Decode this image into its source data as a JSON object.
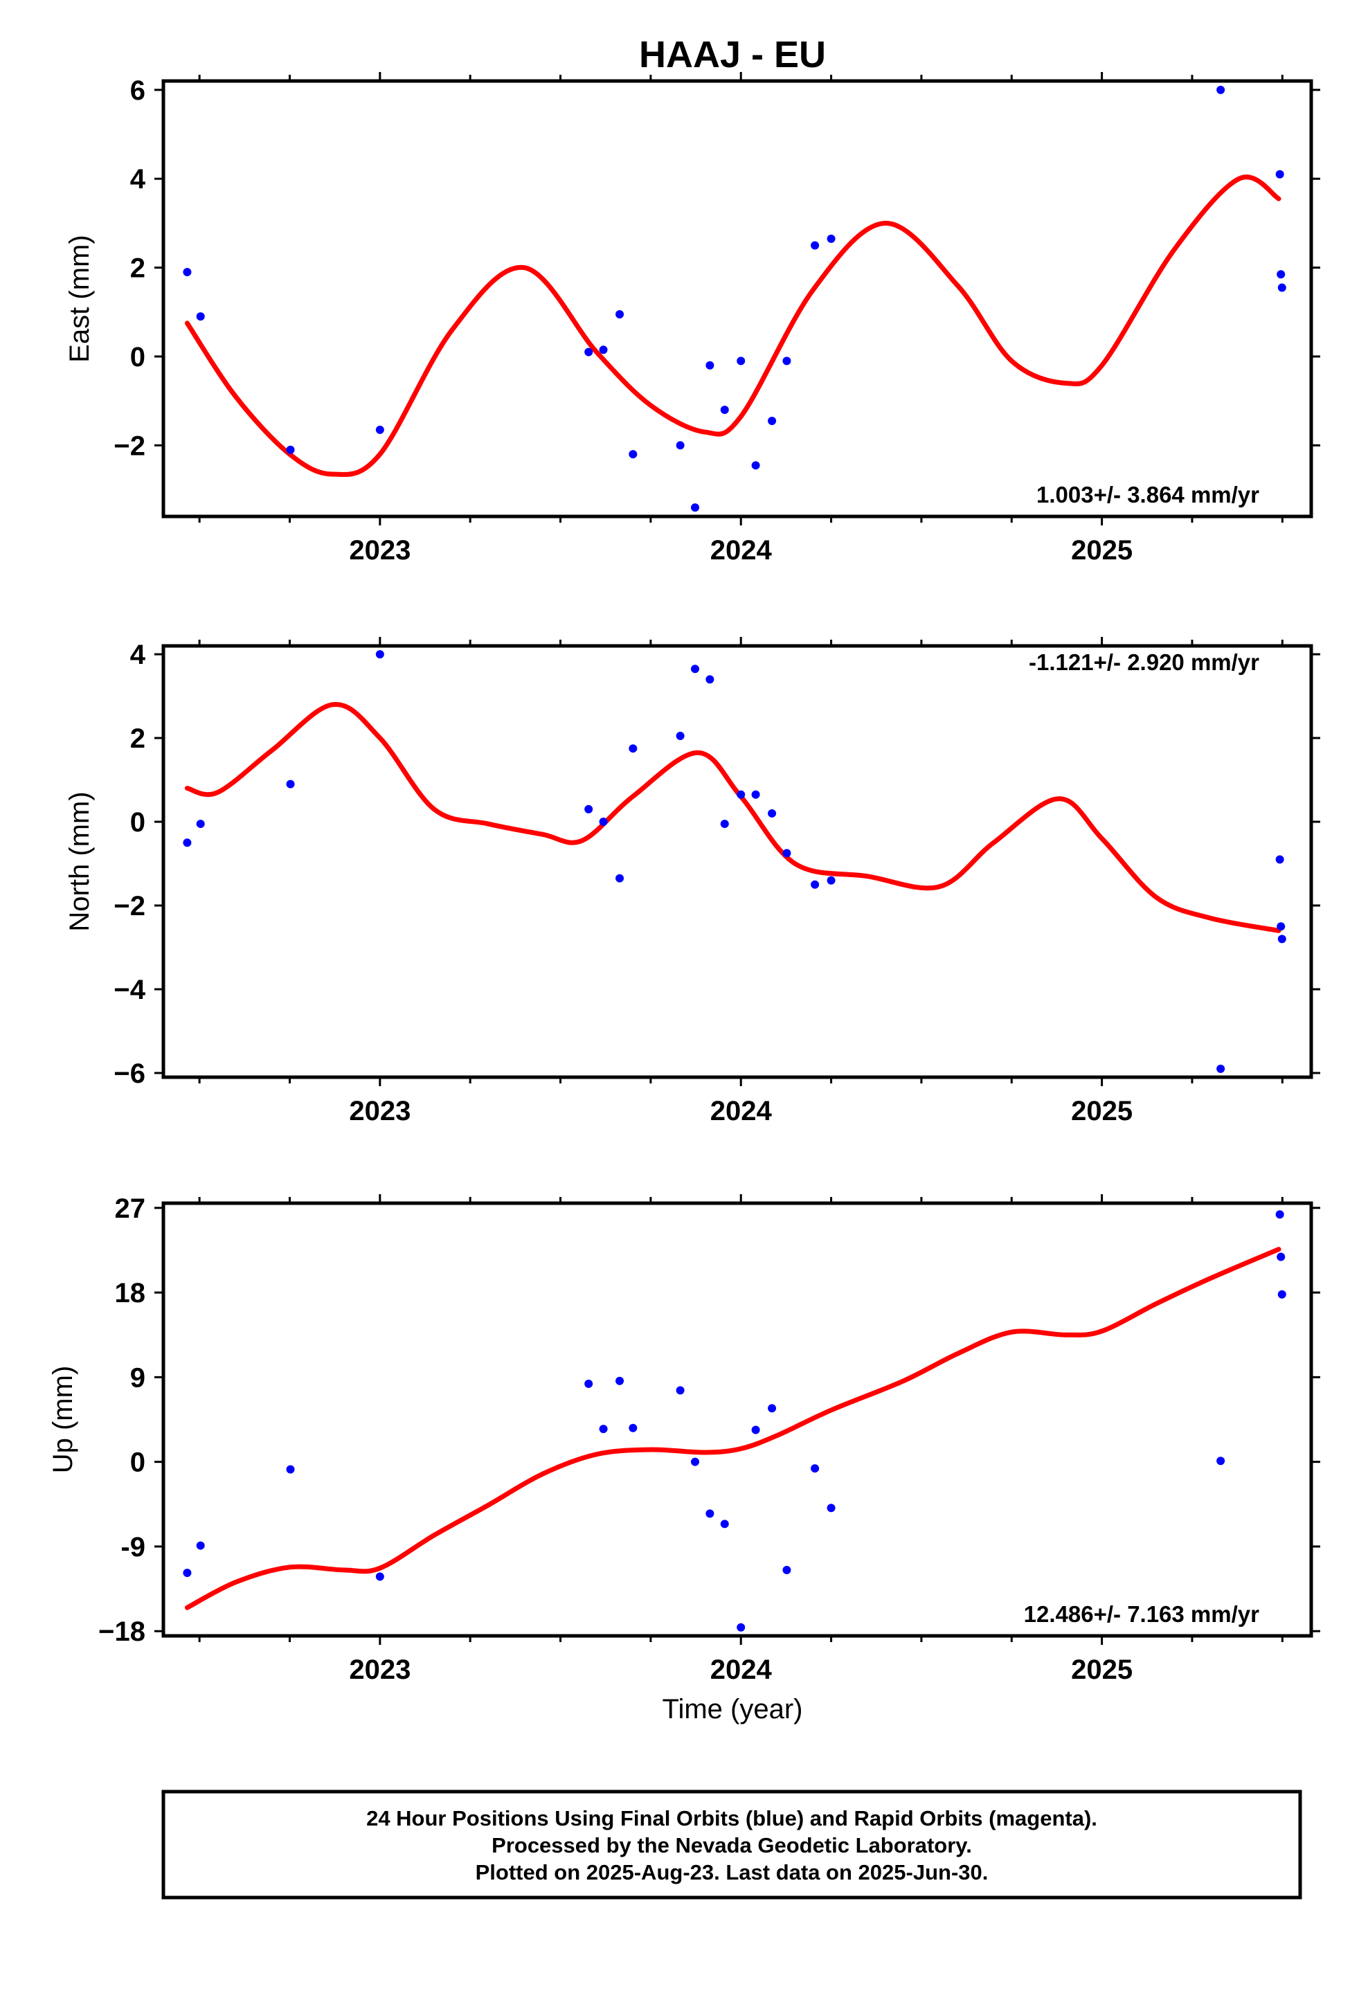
{
  "title": "HAAJ - EU",
  "colors": {
    "points": "#0000ff",
    "fit_line": "#ff0000",
    "frame": "#000000"
  },
  "xlabel": "Time (year)",
  "footer": {
    "line1": "24 Hour Positions Using Final Orbits (blue) and Rapid Orbits (magenta).",
    "line2": "Processed by the Nevada Geodetic Laboratory.",
    "line3": "Plotted on 2025-Aug-23. Last data on 2025-Jun-30."
  },
  "chart_data": [
    {
      "type": "scatter",
      "ylabel": "East (mm)",
      "rate_label": "1.003+/- 3.864 mm/yr",
      "xlim": [
        2022.4,
        2025.58
      ],
      "ylim": [
        -3.6,
        6.2
      ],
      "x_ticks": [
        2023,
        2024,
        2025
      ],
      "y_ticks": [
        6,
        4,
        2,
        0,
        -2
      ],
      "y_tick_labels": [
        "6",
        "4",
        "2",
        "0",
        "−2"
      ],
      "points": {
        "x": [
          2022.466,
          2022.503,
          2022.752,
          2023.0,
          2023.578,
          2023.619,
          2023.664,
          2023.701,
          2023.832,
          2023.873,
          2023.914,
          2023.955,
          2024.0,
          2024.041,
          2024.086,
          2024.127,
          2024.205,
          2024.25,
          2025.329,
          2025.493,
          2025.496,
          2025.499
        ],
        "y": [
          1.9,
          0.9,
          -2.1,
          -1.65,
          0.1,
          0.15,
          0.95,
          -2.2,
          -2.0,
          -3.4,
          -0.2,
          -1.2,
          -0.1,
          -2.45,
          -1.45,
          -0.1,
          2.5,
          2.65,
          6.0,
          4.1,
          1.85,
          1.55
        ]
      },
      "fit": {
        "x": [
          2022.466,
          2022.6,
          2022.75,
          2022.87,
          2023.0,
          2023.2,
          2023.4,
          2023.6,
          2023.75,
          2023.9,
          2024.0,
          2024.2,
          2024.4,
          2024.6,
          2024.75,
          2024.9,
          2025.0,
          2025.2,
          2025.38,
          2025.49
        ],
        "y": [
          0.75,
          -0.9,
          -2.2,
          -2.65,
          -2.2,
          0.6,
          2.0,
          0.1,
          -1.1,
          -1.7,
          -1.35,
          1.5,
          3.0,
          1.6,
          -0.1,
          -0.6,
          -0.2,
          2.4,
          4.0,
          3.55
        ]
      }
    },
    {
      "type": "scatter",
      "ylabel": "North (mm)",
      "rate_label": "-1.121+/- 2.920 mm/yr",
      "xlim": [
        2022.4,
        2025.58
      ],
      "ylim": [
        -6.1,
        4.2
      ],
      "x_ticks": [
        2023,
        2024,
        2025
      ],
      "y_ticks": [
        4,
        2,
        0,
        -2,
        -4,
        -6
      ],
      "y_tick_labels": [
        "4",
        "2",
        "0",
        "−2",
        "−4",
        "−6"
      ],
      "points": {
        "x": [
          2022.466,
          2022.503,
          2022.752,
          2023.0,
          2023.578,
          2023.619,
          2023.664,
          2023.701,
          2023.832,
          2023.873,
          2023.914,
          2023.955,
          2024.0,
          2024.041,
          2024.086,
          2024.127,
          2024.205,
          2024.25,
          2025.329,
          2025.493,
          2025.496,
          2025.499
        ],
        "y": [
          -0.5,
          -0.05,
          0.9,
          4.0,
          0.3,
          0.0,
          -1.35,
          1.75,
          2.05,
          3.65,
          3.4,
          -0.05,
          0.65,
          0.65,
          0.2,
          -0.75,
          -1.5,
          -1.4,
          -5.9,
          -0.9,
          -2.5,
          -2.8
        ]
      },
      "fit": {
        "x": [
          2022.466,
          2022.55,
          2022.7,
          2022.87,
          2023.0,
          2023.15,
          2023.3,
          2023.45,
          2023.56,
          2023.7,
          2023.88,
          2024.0,
          2024.15,
          2024.35,
          2024.55,
          2024.7,
          2024.88,
          2025.0,
          2025.15,
          2025.3,
          2025.49
        ],
        "y": [
          0.8,
          0.7,
          1.7,
          2.8,
          2.0,
          0.3,
          -0.05,
          -0.3,
          -0.45,
          0.6,
          1.65,
          0.6,
          -1.0,
          -1.3,
          -1.55,
          -0.5,
          0.55,
          -0.4,
          -1.8,
          -2.3,
          -2.6
        ]
      }
    },
    {
      "type": "scatter",
      "ylabel": "Up (mm)",
      "rate_label": "12.486+/- 7.163 mm/yr",
      "xlim": [
        2022.4,
        2025.58
      ],
      "ylim": [
        -18.5,
        27.5
      ],
      "x_ticks": [
        2023,
        2024,
        2025
      ],
      "y_ticks": [
        27,
        18,
        9,
        0,
        -9,
        -18
      ],
      "y_tick_labels": [
        "27",
        "18",
        "9",
        "0",
        "-9",
        "−18"
      ],
      "points": {
        "x": [
          2022.466,
          2022.503,
          2022.752,
          2023.0,
          2023.578,
          2023.619,
          2023.664,
          2023.701,
          2023.832,
          2023.873,
          2023.914,
          2023.955,
          2024.0,
          2024.041,
          2024.086,
          2024.127,
          2024.205,
          2024.25,
          2025.329,
          2025.493,
          2025.496,
          2025.499
        ],
        "y": [
          -11.8,
          -8.9,
          -0.8,
          -12.2,
          8.3,
          3.5,
          8.6,
          3.6,
          7.6,
          0.0,
          -5.5,
          -6.6,
          -17.6,
          3.4,
          5.7,
          -11.5,
          -0.7,
          -4.9,
          0.1,
          26.3,
          21.8,
          17.8
        ]
      },
      "fit": {
        "x": [
          2022.466,
          2022.6,
          2022.75,
          2022.9,
          2023.0,
          2023.15,
          2023.3,
          2023.45,
          2023.6,
          2023.75,
          2023.9,
          2024.0,
          2024.1,
          2024.25,
          2024.45,
          2024.6,
          2024.75,
          2024.9,
          2025.0,
          2025.15,
          2025.3,
          2025.49
        ],
        "y": [
          -15.5,
          -12.8,
          -11.2,
          -11.5,
          -11.3,
          -7.8,
          -4.6,
          -1.3,
          0.8,
          1.3,
          1.0,
          1.4,
          2.8,
          5.5,
          8.6,
          11.5,
          13.8,
          13.5,
          13.9,
          16.8,
          19.5,
          22.6
        ]
      }
    }
  ]
}
